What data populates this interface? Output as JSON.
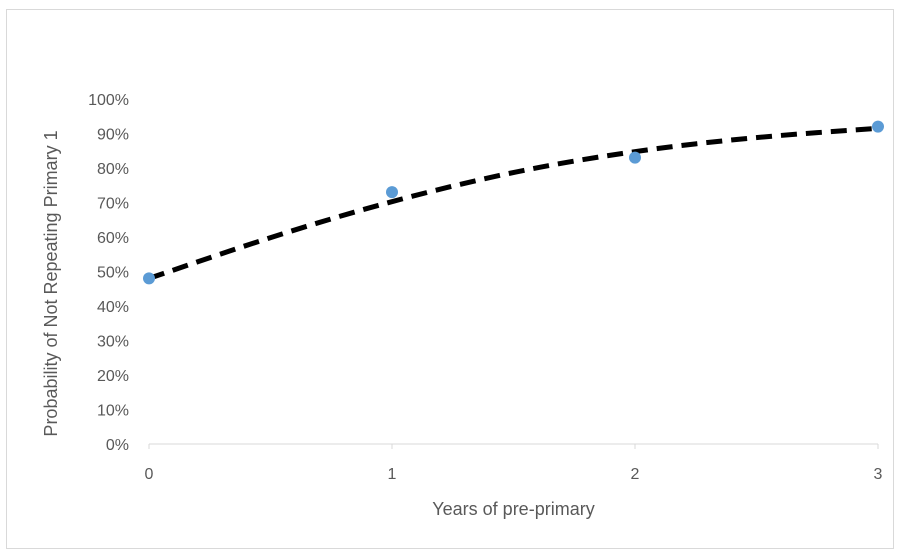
{
  "chart_data": {
    "type": "scatter",
    "title": "",
    "xlabel": "Years of pre-primary",
    "ylabel": "Probability of Not Repeating Primary 1",
    "xlim": [
      0,
      3
    ],
    "ylim": [
      0,
      1
    ],
    "x_ticks": [
      "0",
      "1",
      "2",
      "3"
    ],
    "y_ticks": [
      "0%",
      "10%",
      "20%",
      "30%",
      "40%",
      "50%",
      "60%",
      "70%",
      "80%",
      "90%",
      "100%"
    ],
    "grid": false,
    "legend": "none",
    "series": [
      {
        "points": [
          {
            "x": 0,
            "y": 0.48
          },
          {
            "x": 1,
            "y": 0.73
          },
          {
            "x": 2,
            "y": 0.83
          },
          {
            "x": 3,
            "y": 0.92
          }
        ],
        "color": "#5b9bd5"
      }
    ],
    "trendline": {
      "style": "dashed",
      "color": "#000000",
      "points": [
        {
          "x": 0,
          "y": 0.48
        },
        {
          "x": 0.5,
          "y": 0.6
        },
        {
          "x": 1,
          "y": 0.705
        },
        {
          "x": 1.5,
          "y": 0.79
        },
        {
          "x": 2,
          "y": 0.85
        },
        {
          "x": 2.5,
          "y": 0.89
        },
        {
          "x": 3,
          "y": 0.915
        }
      ]
    }
  }
}
